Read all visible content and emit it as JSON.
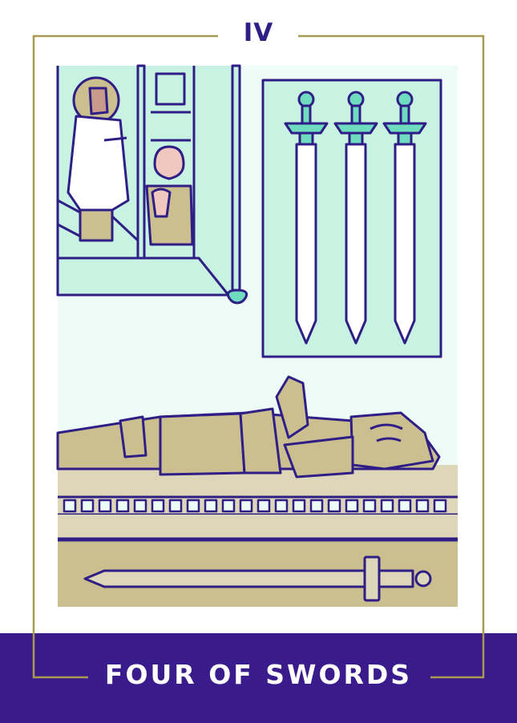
{
  "card": {
    "numeral": "IV",
    "title": "FOUR OF SWORDS"
  },
  "colors": {
    "ink": "#2e1e86",
    "banner": "#3a1b8c",
    "gold_frame": "#a89a52",
    "mint": "#c8f2e2",
    "teal": "#6fdcc0",
    "stone": "#cbbf8f",
    "stone_light": "#ddd6b8",
    "background_wall": "#eefcf7"
  },
  "icons": {
    "wall_swords": "sword-icon",
    "tomb_sword": "sword-icon",
    "window": "stained-glass-window-icon",
    "knight": "resting-knight-icon"
  }
}
